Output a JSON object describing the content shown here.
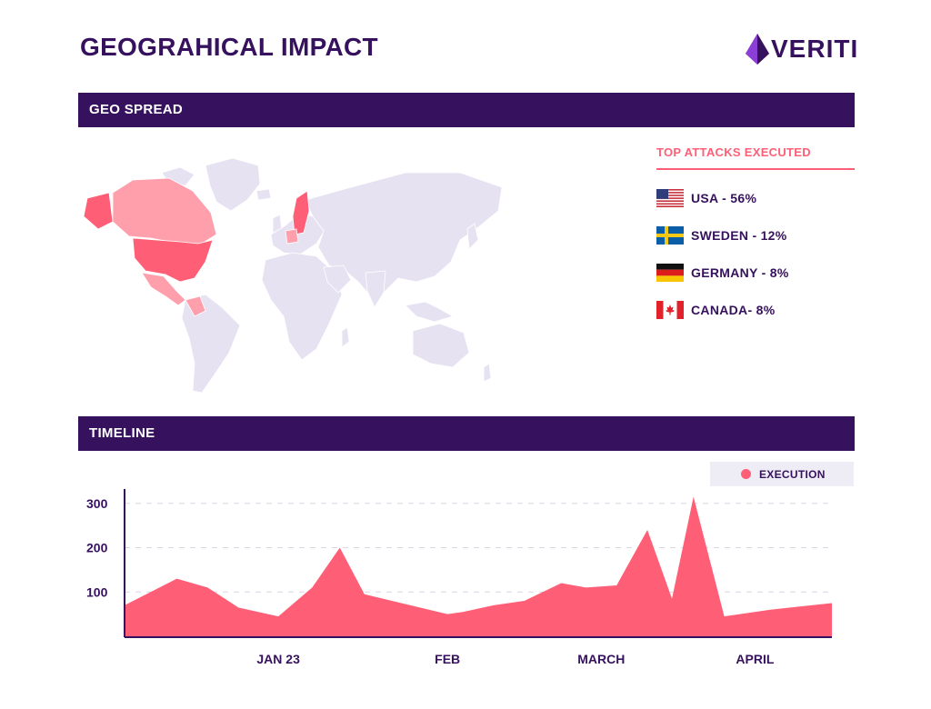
{
  "header": {
    "title": "GEOGRAHICAL IMPACT",
    "logo_text": "VERITI"
  },
  "geo_spread": {
    "section_title": "GEO SPREAD",
    "top_attacks_title": "TOP ATTACKS EXECUTED",
    "attacks": [
      {
        "country": "USA",
        "label": "USA - 56%",
        "percent": 56,
        "flag": "us-flag-icon"
      },
      {
        "country": "Sweden",
        "label": "SWEDEN - 12%",
        "percent": 12,
        "flag": "sweden-flag-icon"
      },
      {
        "country": "Germany",
        "label": "GERMANY - 8%",
        "percent": 8,
        "flag": "germany-flag-icon"
      },
      {
        "country": "Canada",
        "label": "CANADA- 8%",
        "percent": 8,
        "flag": "canada-flag-icon"
      }
    ]
  },
  "timeline": {
    "section_title": "TIMELINE"
  },
  "colors": {
    "brand": "#36115e",
    "accent": "#ff5f76",
    "map_base": "#e6e2f1",
    "map_light": "#ff9fac"
  },
  "chart_data": {
    "type": "area",
    "title": "",
    "xlabel": "",
    "ylabel": "",
    "ylim": [
      0,
      320
    ],
    "yticks": [
      100,
      200,
      300
    ],
    "ytick_labels": [
      "100",
      "200",
      "300"
    ],
    "x_labels": [
      {
        "label": "JAN 23",
        "x": 5
      },
      {
        "label": "FEB",
        "x": 10.5
      },
      {
        "label": "MARCH",
        "x": 15.5
      },
      {
        "label": "APRIL",
        "x": 20.5
      }
    ],
    "xlim": [
      0,
      23
    ],
    "legend": [
      "EXECUTION"
    ],
    "series": [
      {
        "name": "EXECUTION",
        "color": "#ff5f76",
        "x": [
          0,
          1.7,
          2.7,
          3.7,
          5,
          6.1,
          7,
          7.8,
          9,
          10.5,
          11,
          12,
          13,
          14.2,
          15,
          16,
          17,
          17.8,
          18.5,
          19.5,
          21,
          23
        ],
        "values": [
          70,
          130,
          110,
          65,
          45,
          110,
          200,
          95,
          75,
          50,
          55,
          70,
          80,
          120,
          110,
          115,
          240,
          85,
          315,
          45,
          60,
          75
        ]
      }
    ]
  }
}
